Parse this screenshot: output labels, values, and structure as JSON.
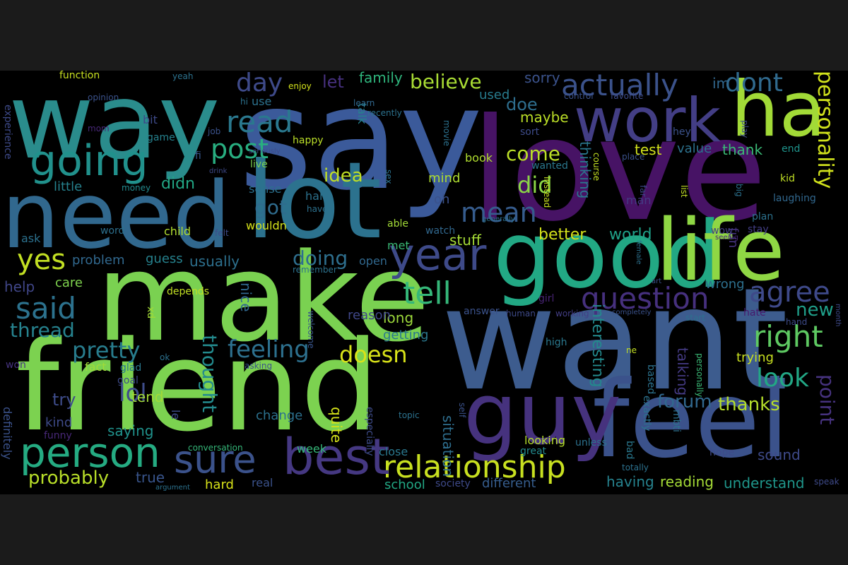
{
  "wordcloud": {
    "words": [
      {
        "text": "say",
        "color": "#3b5a9a",
        "vertical": false
      },
      {
        "text": "way",
        "color": "#2a8c8c",
        "vertical": false
      },
      {
        "text": "love",
        "color": "#471365",
        "vertical": false
      },
      {
        "text": "want",
        "color": "#3d5c8e",
        "vertical": false
      },
      {
        "text": "make",
        "color": "#7ad151",
        "vertical": false
      },
      {
        "text": "friend",
        "color": "#7cd250",
        "vertical": false
      },
      {
        "text": "need",
        "color": "#31688e",
        "vertical": false
      },
      {
        "text": "lot",
        "color": "#2c728e",
        "vertical": false
      },
      {
        "text": "feel",
        "color": "#3b528b",
        "vertical": false
      },
      {
        "text": "good",
        "color": "#22a884",
        "vertical": false
      },
      {
        "text": "life",
        "color": "#8fd744",
        "vertical": false
      },
      {
        "text": "ha",
        "color": "#a2da37",
        "vertical": false
      },
      {
        "text": "guy",
        "color": "#46327e",
        "vertical": false
      },
      {
        "text": "work",
        "color": "#433e85",
        "vertical": false
      },
      {
        "text": "going",
        "color": "#21918c",
        "vertical": false
      },
      {
        "text": "person",
        "color": "#25ab82",
        "vertical": false
      },
      {
        "text": "year",
        "color": "#3e4a89",
        "vertical": false
      },
      {
        "text": "relationship",
        "color": "#c8e020",
        "vertical": false
      },
      {
        "text": "best",
        "color": "#453882",
        "vertical": false
      },
      {
        "text": "sure",
        "color": "#3b528b",
        "vertical": false
      },
      {
        "text": "mean",
        "color": "#365c8d",
        "vertical": false
      },
      {
        "text": "right",
        "color": "#5ec962",
        "vertical": false
      },
      {
        "text": "post",
        "color": "#28ae80",
        "vertical": false
      },
      {
        "text": "read",
        "color": "#2a788e",
        "vertical": false
      },
      {
        "text": "actually",
        "color": "#3b528b",
        "vertical": false
      },
      {
        "text": "tell",
        "color": "#35b779",
        "vertical": false
      },
      {
        "text": "question",
        "color": "#46307e",
        "vertical": false
      },
      {
        "text": "agree",
        "color": "#3e4989",
        "vertical": false
      },
      {
        "text": "said",
        "color": "#2c728e",
        "vertical": false
      },
      {
        "text": "feeling",
        "color": "#2d708e",
        "vertical": false
      },
      {
        "text": "doesn",
        "color": "#d8e219",
        "vertical": false
      },
      {
        "text": "pretty",
        "color": "#287d8e",
        "vertical": false
      },
      {
        "text": "lol",
        "color": "#3e4c8a",
        "vertical": false
      },
      {
        "text": "look",
        "color": "#22a785",
        "vertical": false
      },
      {
        "text": "yes",
        "color": "#c2df23",
        "vertical": false
      },
      {
        "text": "dont",
        "color": "#306a8e",
        "vertical": false
      },
      {
        "text": "day",
        "color": "#3e4a89",
        "vertical": false
      },
      {
        "text": "did",
        "color": "#8bd646",
        "vertical": false
      },
      {
        "text": "got",
        "color": "#2f6c8e",
        "vertical": false
      },
      {
        "text": "thread",
        "color": "#26828e",
        "vertical": false
      },
      {
        "text": "believe",
        "color": "#a8db34",
        "vertical": false
      },
      {
        "text": "come",
        "color": "#bade28",
        "vertical": false
      },
      {
        "text": "idea",
        "color": "#c0df25",
        "vertical": false
      },
      {
        "text": "doing",
        "color": "#2e6f8e",
        "vertical": false
      },
      {
        "text": "thanks",
        "color": "#b5de2b",
        "vertical": false
      },
      {
        "text": "forum",
        "color": "#31688e",
        "vertical": false
      },
      {
        "text": "new",
        "color": "#1f9e89",
        "vertical": false
      },
      {
        "text": "probably",
        "color": "#b8de29",
        "vertical": false
      },
      {
        "text": "personality",
        "color": "#d0e11c",
        "vertical": true
      },
      {
        "text": "point",
        "color": "#46327e",
        "vertical": true
      },
      {
        "text": "thought",
        "color": "#238a8d",
        "vertical": true
      },
      {
        "text": "didn",
        "color": "#22a785",
        "vertical": false
      },
      {
        "text": "let",
        "color": "#46307e",
        "vertical": false
      },
      {
        "text": "family",
        "color": "#2fb47c",
        "vertical": false
      },
      {
        "text": "sorry",
        "color": "#3b528b",
        "vertical": false
      },
      {
        "text": "doe",
        "color": "#2e6e8e",
        "vertical": false
      },
      {
        "text": "maybe",
        "color": "#bbdf27",
        "vertical": false
      },
      {
        "text": "used",
        "color": "#287c8e",
        "vertical": false
      },
      {
        "text": "im",
        "color": "#31678e",
        "vertical": false
      },
      {
        "text": "test",
        "color": "#d2e21b",
        "vertical": false
      },
      {
        "text": "value",
        "color": "#2c728e",
        "vertical": false
      },
      {
        "text": "thank",
        "color": "#3aba76",
        "vertical": false
      },
      {
        "text": "end",
        "color": "#1f948c",
        "vertical": false
      },
      {
        "text": "world",
        "color": "#1fa188",
        "vertical": false
      },
      {
        "text": "better",
        "color": "#d5e21a",
        "vertical": false
      },
      {
        "text": "stuff",
        "color": "#a5db36",
        "vertical": false
      },
      {
        "text": "usually",
        "color": "#2d708e",
        "vertical": false
      },
      {
        "text": "guess",
        "color": "#26828e",
        "vertical": false
      },
      {
        "text": "problem",
        "color": "#31688e",
        "vertical": false
      },
      {
        "text": "care",
        "color": "#7fd34e",
        "vertical": false
      },
      {
        "text": "help",
        "color": "#404688",
        "vertical": false
      },
      {
        "text": "little",
        "color": "#26828e",
        "vertical": false
      },
      {
        "text": "child",
        "color": "#b0dd2f",
        "vertical": false
      },
      {
        "text": "word",
        "color": "#2d708e",
        "vertical": false
      },
      {
        "text": "ask",
        "color": "#2c718e",
        "vertical": false
      },
      {
        "text": "try",
        "color": "#3e4c8a",
        "vertical": false
      },
      {
        "text": "kind",
        "color": "#3e4a89",
        "vertical": false
      },
      {
        "text": "tend",
        "color": "#a2da37",
        "vertical": false
      },
      {
        "text": "saying",
        "color": "#20928c",
        "vertical": false
      },
      {
        "text": "fact",
        "color": "#a0da39",
        "vertical": false
      },
      {
        "text": "true",
        "color": "#39558c",
        "vertical": false
      },
      {
        "text": "hard",
        "color": "#d8e219",
        "vertical": false
      },
      {
        "text": "real",
        "color": "#3b528b",
        "vertical": false
      },
      {
        "text": "school",
        "color": "#22a884",
        "vertical": false
      },
      {
        "text": "different",
        "color": "#365d8d",
        "vertical": false
      },
      {
        "text": "having",
        "color": "#26828e",
        "vertical": false
      },
      {
        "text": "reading",
        "color": "#a5db36",
        "vertical": false
      },
      {
        "text": "understand",
        "color": "#1f968b",
        "vertical": false
      },
      {
        "text": "sound",
        "color": "#3e4a89",
        "vertical": false
      },
      {
        "text": "trying",
        "color": "#c8e020",
        "vertical": false
      },
      {
        "text": "wrong",
        "color": "#2d708e",
        "vertical": false
      },
      {
        "text": "fun",
        "color": "#46337f",
        "vertical": true
      },
      {
        "text": "talking",
        "color": "#443a83",
        "vertical": true
      },
      {
        "text": "interesting",
        "color": "#238a8d",
        "vertical": true
      },
      {
        "text": "thinking",
        "color": "#2a788e",
        "vertical": true
      },
      {
        "text": "quite",
        "color": "#d5e21a",
        "vertical": true
      },
      {
        "text": "situation",
        "color": "#2e6e8e",
        "vertical": true
      },
      {
        "text": "nice",
        "color": "#31688e",
        "vertical": true
      },
      {
        "text": "long",
        "color": "#9dd93b",
        "vertical": false
      },
      {
        "text": "getting",
        "color": "#2a788e",
        "vertical": false
      },
      {
        "text": "reason",
        "color": "#3f4788",
        "vertical": false
      },
      {
        "text": "change",
        "color": "#2c718e",
        "vertical": false
      },
      {
        "text": "week",
        "color": "#35b779",
        "vertical": false
      },
      {
        "text": "close",
        "color": "#2a788e",
        "vertical": false
      },
      {
        "text": "mind",
        "color": "#addc30",
        "vertical": false
      },
      {
        "text": "oh",
        "color": "#3b528b",
        "vertical": false
      },
      {
        "text": "met",
        "color": "#3aba76",
        "vertical": false
      },
      {
        "text": "open",
        "color": "#31688e",
        "vertical": false
      },
      {
        "text": "wouldn",
        "color": "#d5e21a",
        "vertical": false
      },
      {
        "text": "sense",
        "color": "#2c718e",
        "vertical": false
      },
      {
        "text": "haha",
        "color": "#2c728e",
        "vertical": false
      },
      {
        "text": "happy",
        "color": "#bade28",
        "vertical": false
      },
      {
        "text": "talk",
        "color": "#26828e",
        "vertical": true
      },
      {
        "text": "book",
        "color": "#b0dd2f",
        "vertical": false
      },
      {
        "text": "wanted",
        "color": "#2a788e",
        "vertical": false
      },
      {
        "text": "sort",
        "color": "#3e4c8a",
        "vertical": false
      },
      {
        "text": "hey",
        "color": "#3b528b",
        "vertical": false
      },
      {
        "text": "kid",
        "color": "#c0df25",
        "vertical": false
      },
      {
        "text": "man",
        "color": "#443a83",
        "vertical": false
      },
      {
        "text": "plan",
        "color": "#2c728e",
        "vertical": false
      },
      {
        "text": "laughing",
        "color": "#31688e",
        "vertical": false
      },
      {
        "text": "stay",
        "color": "#433e85",
        "vertical": false
      },
      {
        "text": "wow",
        "color": "#433e85",
        "vertical": false
      },
      {
        "text": "game",
        "color": "#26828e",
        "vertical": false
      },
      {
        "text": "bit",
        "color": "#3e4a89",
        "vertical": false
      },
      {
        "text": "use",
        "color": "#2c728e",
        "vertical": false
      },
      {
        "text": "fi",
        "color": "#38588c",
        "vertical": false
      },
      {
        "text": "live",
        "color": "#7ad151",
        "vertical": false
      },
      {
        "text": "money",
        "color": "#238a8d",
        "vertical": false
      },
      {
        "text": "felt",
        "color": "#3e4c8a",
        "vertical": false
      },
      {
        "text": "able",
        "color": "#a2da37",
        "vertical": false
      },
      {
        "text": "watch",
        "color": "#31688e",
        "vertical": false
      },
      {
        "text": "girl",
        "color": "#482475",
        "vertical": false
      },
      {
        "text": "answer",
        "color": "#3b528b",
        "vertical": false
      },
      {
        "text": "human",
        "color": "#3e4a89",
        "vertical": false
      },
      {
        "text": "working",
        "color": "#433e85",
        "vertical": false
      },
      {
        "text": "start",
        "color": "#2d708e",
        "vertical": false
      },
      {
        "text": "hate",
        "color": "#481a6c",
        "vertical": false
      },
      {
        "text": "hand",
        "color": "#3e4c8a",
        "vertical": false
      },
      {
        "text": "high",
        "color": "#2a788e",
        "vertical": false
      },
      {
        "text": "ne",
        "color": "#c2df23",
        "vertical": false
      },
      {
        "text": "looking",
        "color": "#b5de2b",
        "vertical": false
      },
      {
        "text": "great",
        "color": "#238a8d",
        "vertical": false
      },
      {
        "text": "unless",
        "color": "#2c718e",
        "vertical": false
      },
      {
        "text": "bad",
        "color": "#2a788e",
        "vertical": true
      },
      {
        "text": "totally",
        "color": "#2c718e",
        "vertical": false
      },
      {
        "text": "hope",
        "color": "#3e4a89",
        "vertical": false
      },
      {
        "text": "speak",
        "color": "#3e4a89",
        "vertical": false
      },
      {
        "text": "mbti",
        "color": "#2c728e",
        "vertical": true
      },
      {
        "text": "exactly",
        "color": "#2c728e",
        "vertical": true
      },
      {
        "text": "based",
        "color": "#2c728e",
        "vertical": true
      },
      {
        "text": "personally",
        "color": "#3aba76",
        "vertical": true
      },
      {
        "text": "especially",
        "color": "#3e4c8a",
        "vertical": true
      },
      {
        "text": "definitely",
        "color": "#3b528b",
        "vertical": true
      },
      {
        "text": "experience",
        "color": "#3e4a89",
        "vertical": true
      },
      {
        "text": "welcome",
        "color": "#39558c",
        "vertical": true
      },
      {
        "text": "depends",
        "color": "#c2df23",
        "vertical": false
      },
      {
        "text": "xd",
        "color": "#a5db36",
        "vertical": true
      },
      {
        "text": "le",
        "color": "#3e4c8a",
        "vertical": true
      },
      {
        "text": "ok",
        "color": "#2c718e",
        "vertical": false
      },
      {
        "text": "glad",
        "color": "#2a788e",
        "vertical": false
      },
      {
        "text": "goal",
        "color": "#3e4a89",
        "vertical": false
      },
      {
        "text": "won",
        "color": "#463480",
        "vertical": false
      },
      {
        "text": "funny",
        "color": "#482878",
        "vertical": false
      },
      {
        "text": "argument",
        "color": "#2c728e",
        "vertical": false
      },
      {
        "text": "conversation",
        "color": "#35b779",
        "vertical": false
      },
      {
        "text": "topic",
        "color": "#2c728e",
        "vertical": false
      },
      {
        "text": "society",
        "color": "#3e4a89",
        "vertical": false
      },
      {
        "text": "self",
        "color": "#3b528b",
        "vertical": true
      },
      {
        "text": "remember",
        "color": "#2c728e",
        "vertical": false
      },
      {
        "text": "asking",
        "color": "#3b528b",
        "vertical": false
      },
      {
        "text": "function",
        "color": "#c8e020",
        "vertical": false
      },
      {
        "text": "opinion",
        "color": "#3b528b",
        "vertical": false
      },
      {
        "text": "yeah",
        "color": "#2c728e",
        "vertical": false
      },
      {
        "text": "enjoy",
        "color": "#d2e21b",
        "vertical": false
      },
      {
        "text": "learn",
        "color": "#31688e",
        "vertical": false
      },
      {
        "text": "hi",
        "color": "#2c728e",
        "vertical": false
      },
      {
        "text": "mom",
        "color": "#482878",
        "vertical": false
      },
      {
        "text": "job",
        "color": "#3b528b",
        "vertical": false
      },
      {
        "text": "seriously",
        "color": "#3e4a89",
        "vertical": false
      },
      {
        "text": "drink",
        "color": "#3e4a89",
        "vertical": false
      },
      {
        "text": "haven",
        "color": "#2c718e",
        "vertical": false
      },
      {
        "text": "recently",
        "color": "#2c728e",
        "vertical": false
      },
      {
        "text": "generally",
        "color": "#2c718e",
        "vertical": false
      },
      {
        "text": "movie",
        "color": "#2c718e",
        "vertical": true
      },
      {
        "text": "sex",
        "color": "#2c718e",
        "vertical": true
      },
      {
        "text": "instead",
        "color": "#c8e020",
        "vertical": true
      },
      {
        "text": "course",
        "color": "#c2df23",
        "vertical": true
      },
      {
        "text": "control",
        "color": "#3b528b",
        "vertical": false
      },
      {
        "text": "favorite",
        "color": "#3e4c8a",
        "vertical": false
      },
      {
        "text": "place",
        "color": "#3b528b",
        "vertical": false
      },
      {
        "text": "play",
        "color": "#3e4c8a",
        "vertical": true
      },
      {
        "text": "list",
        "color": "#c2df23",
        "vertical": true
      },
      {
        "text": "big",
        "color": "#2c718e",
        "vertical": true
      },
      {
        "text": "far",
        "color": "#3e4a89",
        "vertical": true
      },
      {
        "text": "female",
        "color": "#2c718e",
        "vertical": true
      },
      {
        "text": "art",
        "color": "#3b528b",
        "vertical": false
      },
      {
        "text": "completely",
        "color": "#3b528b",
        "vertical": false
      },
      {
        "text": "seeing",
        "color": "#482878",
        "vertical": false
      },
      {
        "text": "month",
        "color": "#3e4a89",
        "vertical": true
      }
    ]
  }
}
